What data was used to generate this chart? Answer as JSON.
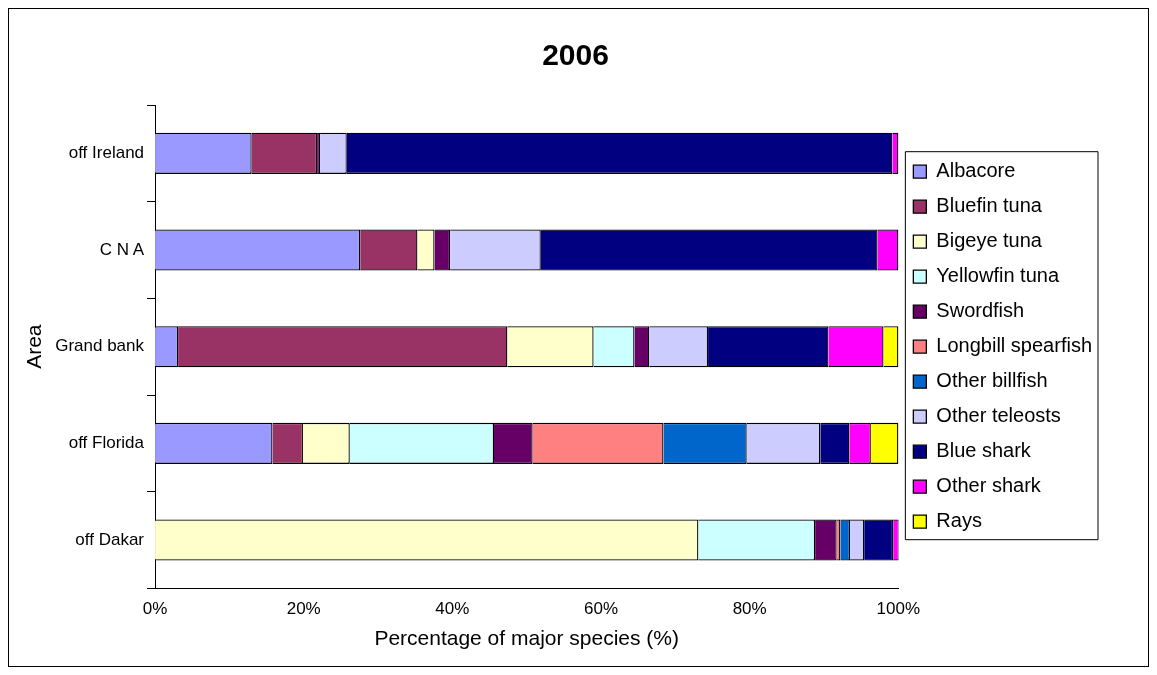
{
  "chart_data": {
    "type": "bar",
    "orientation": "horizontal",
    "stacked": true,
    "title": "2006",
    "xlabel": "Percentage of major species (%)",
    "ylabel": "Area",
    "categories": [
      "off Ireland",
      "C N A",
      "Grand bank",
      "off Florida",
      "off Dakar"
    ],
    "xlim": [
      0,
      100
    ],
    "xticks": [
      {
        "value": 0,
        "label": "0%"
      },
      {
        "value": 20,
        "label": "20%"
      },
      {
        "value": 40,
        "label": "40%"
      },
      {
        "value": 60,
        "label": "60%"
      },
      {
        "value": 80,
        "label": "80%"
      },
      {
        "value": 100,
        "label": "100%"
      }
    ],
    "grid": false,
    "legend": "right",
    "series": [
      {
        "name": "Albacore",
        "color": "#9999ff",
        "values": [
          13.0,
          27.6,
          3.1,
          15.8,
          null
        ]
      },
      {
        "name": "Bluefin tuna",
        "color": "#993366",
        "values": [
          8.8,
          7.7,
          44.3,
          4.1,
          null
        ]
      },
      {
        "name": "Bigeye tuna",
        "color": "#ffffcc",
        "values": [
          null,
          2.3,
          11.6,
          6.3,
          73.1
        ]
      },
      {
        "name": "Yellowfin tuna",
        "color": "#ccffff",
        "values": [
          null,
          null,
          5.5,
          19.4,
          15.7
        ]
      },
      {
        "name": "Swordfish",
        "color": "#660066",
        "values": [
          0.4,
          2.1,
          2.0,
          5.2,
          2.9
        ]
      },
      {
        "name": "Longbill spearfish",
        "color": "#ff8080",
        "values": [
          null,
          null,
          null,
          17.6,
          0.5
        ]
      },
      {
        "name": "Other billfish",
        "color": "#0066cc",
        "values": [
          null,
          null,
          null,
          11.2,
          1.3
        ]
      },
      {
        "name": "Other teleosts",
        "color": "#ccccff",
        "values": [
          3.6,
          12.2,
          7.9,
          9.9,
          1.9
        ]
      },
      {
        "name": "Blue shark",
        "color": "#000080",
        "values": [
          73.4,
          45.3,
          16.2,
          3.9,
          3.9
        ]
      },
      {
        "name": "Other shark",
        "color": "#ff00ff",
        "values": [
          0.8,
          2.8,
          7.4,
          2.9,
          0.8
        ]
      },
      {
        "name": "Rays",
        "color": "#ffff00",
        "values": [
          null,
          null,
          2.0,
          3.7,
          null
        ]
      }
    ]
  }
}
